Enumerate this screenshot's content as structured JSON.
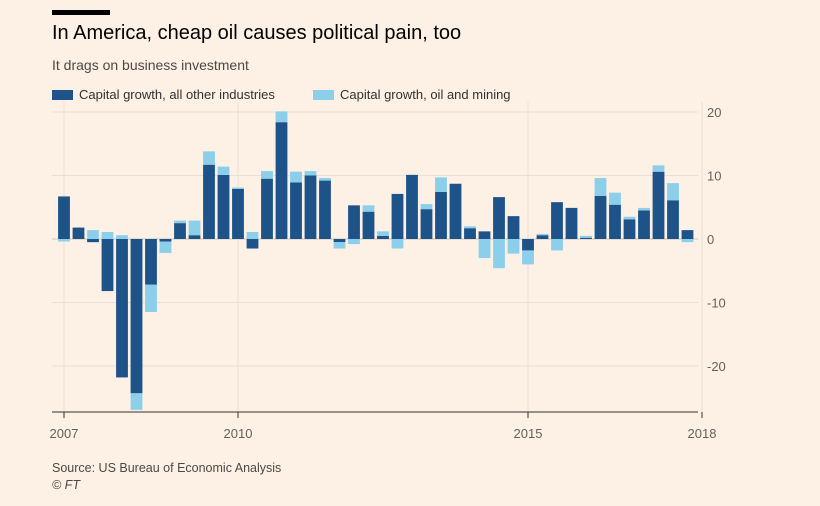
{
  "title": "In America, cheap oil causes political pain, too",
  "subtitle": "It drags on business investment",
  "source": "Source: US Bureau of Economic Analysis",
  "credit": "© FT",
  "colors": {
    "background": "#fdf1e6",
    "series_other": "#1d5389",
    "series_oil": "#8ccfea",
    "grid": "#e9dfd5",
    "axis_text": "#66605c"
  },
  "chart_data": {
    "type": "bar",
    "stacked": true,
    "grid": true,
    "legend_position": "top-left",
    "y_axis_side": "right",
    "ylim": [
      -27,
      21
    ],
    "yticks": [
      20,
      10,
      0,
      -10,
      -20
    ],
    "ytick_labels": [
      "20",
      "10",
      "0",
      "-10",
      "-20"
    ],
    "x_tick_labels": [
      {
        "label": "2007",
        "index": 0
      },
      {
        "label": "2010",
        "index": 12
      },
      {
        "label": "2015",
        "index": 32
      },
      {
        "label": "2018",
        "index": 44
      }
    ],
    "series": [
      {
        "name": "Capital growth, all other industries",
        "color": "#1d5389",
        "values": [
          6.7,
          1.8,
          -0.5,
          -8.2,
          -21.8,
          -24.3,
          -7.2,
          -0.4,
          2.5,
          0.6,
          11.7,
          10.1,
          7.9,
          -1.5,
          9.5,
          18.4,
          8.9,
          10.0,
          9.2,
          -0.5,
          5.3,
          4.3,
          0.5,
          7.1,
          10.1,
          4.7,
          7.4,
          8.7,
          1.7,
          1.2,
          6.6,
          3.6,
          -1.8,
          0.6,
          5.8,
          4.9,
          0.2,
          6.8,
          5.4,
          3.1,
          4.5,
          10.6,
          6.1,
          1.4
        ]
      },
      {
        "name": "Capital growth, oil and mining",
        "color": "#8ccfea",
        "values": [
          -0.4,
          0.0,
          1.4,
          1.1,
          0.6,
          -2.6,
          -4.3,
          -1.8,
          0.4,
          2.3,
          2.1,
          1.3,
          0.2,
          1.1,
          1.2,
          1.7,
          1.7,
          0.7,
          0.4,
          -1.0,
          -0.8,
          1.0,
          0.7,
          -1.5,
          0.0,
          0.8,
          2.3,
          0.0,
          0.3,
          -3.0,
          -4.6,
          -2.3,
          -2.2,
          0.2,
          -1.8,
          0.0,
          0.3,
          2.8,
          1.9,
          0.4,
          0.4,
          1.0,
          2.7,
          -0.5
        ]
      }
    ]
  }
}
